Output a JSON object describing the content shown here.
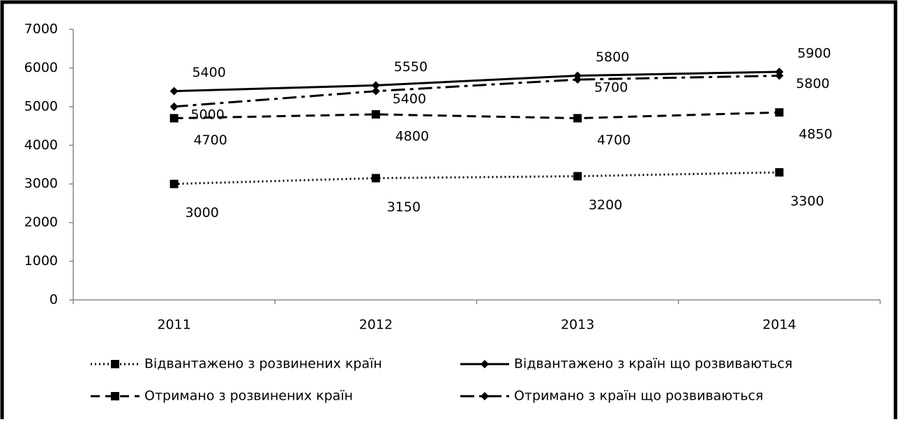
{
  "chart_data": {
    "type": "line",
    "categories": [
      "2011",
      "2012",
      "2013",
      "2014"
    ],
    "series": [
      {
        "name": "Відвантажено з розвинених країн",
        "color": "#000000",
        "dash": "dotted",
        "marker": "square",
        "values": [
          3000,
          3150,
          3200,
          3300
        ]
      },
      {
        "name": "Відвантажено з країн що розвиваються",
        "color": "#000000",
        "dash": "solid",
        "marker": "diamond",
        "values": [
          5400,
          5550,
          5800,
          5900
        ]
      },
      {
        "name": "Отримано з розвинених країн",
        "color": "#000000",
        "dash": "dashed",
        "marker": "square",
        "values": [
          4700,
          4800,
          4700,
          4850
        ]
      },
      {
        "name": "Отримано з країн що розвиваються",
        "color": "#000000",
        "dash": "dashdot",
        "marker": "diamond",
        "values": [
          5000,
          5400,
          5700,
          5800
        ]
      }
    ],
    "ylim": [
      0,
      7000
    ],
    "yticks": [
      0,
      1000,
      2000,
      3000,
      4000,
      5000,
      6000,
      7000
    ],
    "grid": false,
    "legend": "bottom"
  }
}
